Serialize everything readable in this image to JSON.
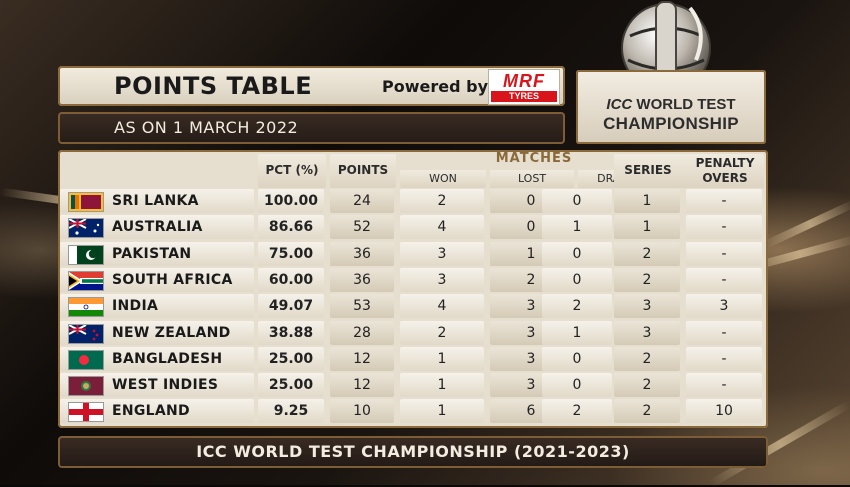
{
  "header": {
    "title": "POINTS TABLE",
    "powered_by": "Powered by",
    "sponsor_logo": {
      "name": "MRF",
      "subtitle": "TYRES"
    }
  },
  "as_on": "AS ON 1 MARCH 2022",
  "icc_logo": {
    "line1_icc": "ICC",
    "line1_rest": "WORLD TEST",
    "line2": "CHAMPIONSHIP"
  },
  "columns": {
    "pct": "PCT (%)",
    "points": "POINTS",
    "matches": "MATCHES",
    "won": "WON",
    "lost": "LOST",
    "drawn": "DRAWN",
    "series": "SERIES",
    "penalty_line1": "PENALTY",
    "penalty_line2": "OVERS"
  },
  "rows": [
    {
      "team": "SRI LANKA",
      "flag": "sri-lanka-flag",
      "pct": "100.00",
      "points": "24",
      "won": "2",
      "lost": "0",
      "drawn": "0",
      "series": "1",
      "penalty": "-"
    },
    {
      "team": "AUSTRALIA",
      "flag": "australia-flag",
      "pct": "86.66",
      "points": "52",
      "won": "4",
      "lost": "0",
      "drawn": "1",
      "series": "1",
      "penalty": "-"
    },
    {
      "team": "PAKISTAN",
      "flag": "pakistan-flag",
      "pct": "75.00",
      "points": "36",
      "won": "3",
      "lost": "1",
      "drawn": "0",
      "series": "2",
      "penalty": "-"
    },
    {
      "team": "SOUTH AFRICA",
      "flag": "south-africa-flag",
      "pct": "60.00",
      "points": "36",
      "won": "3",
      "lost": "2",
      "drawn": "0",
      "series": "2",
      "penalty": "-"
    },
    {
      "team": "INDIA",
      "flag": "india-flag",
      "pct": "49.07",
      "points": "53",
      "won": "4",
      "lost": "3",
      "drawn": "2",
      "series": "3",
      "penalty": "3"
    },
    {
      "team": "NEW ZEALAND",
      "flag": "new-zealand-flag",
      "pct": "38.88",
      "points": "28",
      "won": "2",
      "lost": "3",
      "drawn": "1",
      "series": "3",
      "penalty": "-"
    },
    {
      "team": "BANGLADESH",
      "flag": "bangladesh-flag",
      "pct": "25.00",
      "points": "12",
      "won": "1",
      "lost": "3",
      "drawn": "0",
      "series": "2",
      "penalty": "-"
    },
    {
      "team": "WEST INDIES",
      "flag": "west-indies-flag",
      "pct": "25.00",
      "points": "12",
      "won": "1",
      "lost": "3",
      "drawn": "0",
      "series": "2",
      "penalty": "-"
    },
    {
      "team": "ENGLAND",
      "flag": "england-flag",
      "pct": "9.25",
      "points": "10",
      "won": "1",
      "lost": "6",
      "drawn": "2",
      "series": "2",
      "penalty": "10"
    }
  ],
  "footer": "ICC WORLD TEST CHAMPIONSHIP (2021-2023)",
  "colors": {
    "accent_gold": "#8a6a3a",
    "panel_cream": "#e6dfd0",
    "dark_bar": "#2e231d"
  }
}
